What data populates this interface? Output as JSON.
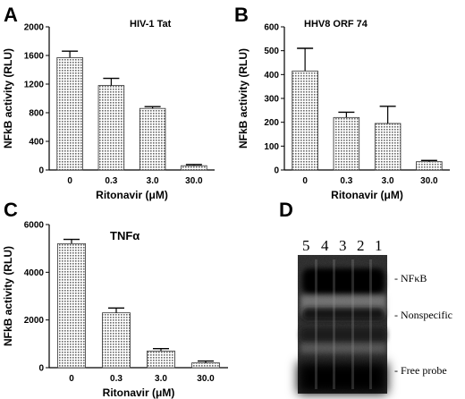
{
  "chart_data": [
    {
      "type": "bar",
      "panel": "A",
      "title": "HIV-1 Tat",
      "ylabel": "NFkB activity (RLU)",
      "xlabel": "Ritonavir (μM)",
      "categories": [
        "0",
        "0.3",
        "3.0",
        "30.0"
      ],
      "values": [
        1570,
        1180,
        860,
        60
      ],
      "errors": [
        90,
        100,
        25,
        15
      ],
      "ylim": [
        0,
        2000
      ],
      "yticks": [
        "0",
        "400",
        "800",
        "1200",
        "1600",
        "2000"
      ]
    },
    {
      "type": "bar",
      "panel": "B",
      "title": "HHV8 ORF 74",
      "ylabel": "NFkB activity (RLU)",
      "xlabel": "Ritonavir (μM)",
      "categories": [
        "0",
        "0.3",
        "3.0",
        "30.0"
      ],
      "values": [
        415,
        220,
        195,
        35
      ],
      "errors": [
        95,
        22,
        72,
        5
      ],
      "ylim": [
        0,
        600
      ],
      "yticks": [
        "0",
        "100",
        "200",
        "300",
        "400",
        "500",
        "600"
      ]
    },
    {
      "type": "bar",
      "panel": "C",
      "title": "TNFα",
      "ylabel": "NFkB activity (RLU)",
      "xlabel": "Ritonavir (μM)",
      "categories": [
        "0",
        "0.3",
        "3.0",
        "30.0"
      ],
      "values": [
        5200,
        2300,
        700,
        200
      ],
      "errors": [
        180,
        200,
        100,
        80
      ],
      "ylim": [
        0,
        6000
      ],
      "yticks": [
        "0",
        "2000",
        "4000",
        "6000"
      ]
    }
  ],
  "blot": {
    "panel": "D",
    "lanes": [
      "5",
      "4",
      "3",
      "2",
      "1"
    ],
    "labels": [
      "- NFκB",
      "- Nonspecific",
      "- Free probe"
    ]
  }
}
